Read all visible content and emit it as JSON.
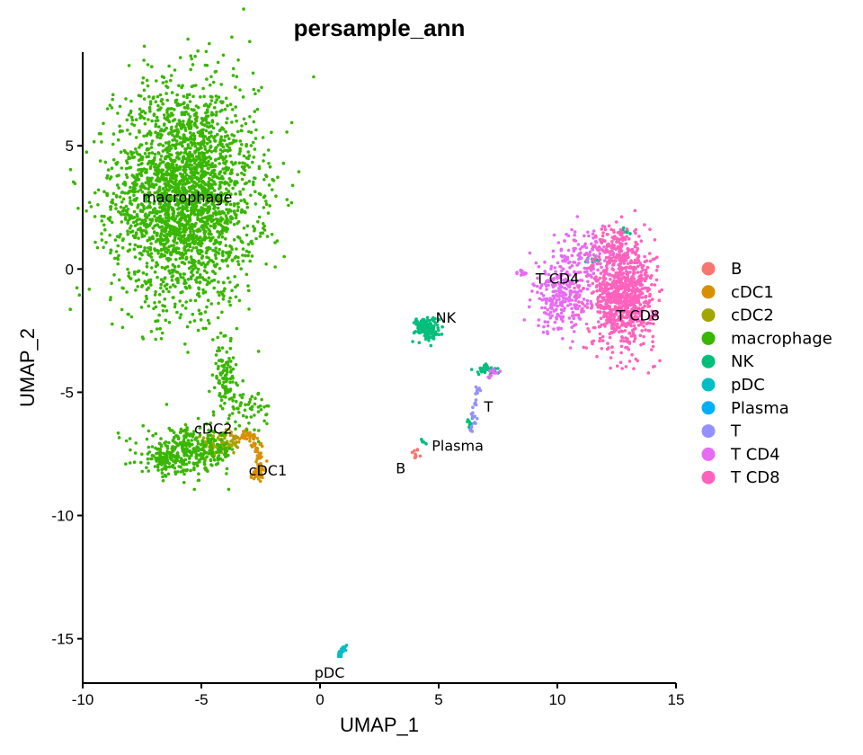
{
  "chart_data": {
    "type": "scatter",
    "title": "persample_ann",
    "xlabel": "UMAP_1",
    "ylabel": "UMAP_2",
    "xlim": [
      -10,
      15
    ],
    "ylim": [
      -16.8,
      8.8
    ],
    "xticks": [
      -10,
      -5,
      0,
      5,
      10,
      15
    ],
    "yticks": [
      -15,
      -10,
      -5,
      0,
      5
    ],
    "xtick_labels": [
      "-10",
      "-5",
      "0",
      "5",
      "10",
      "15"
    ],
    "ytick_labels": [
      "-15",
      "-10",
      "-5",
      "0",
      "5"
    ],
    "grid": false,
    "legend_position": "right",
    "categories": [
      "B",
      "cDC1",
      "cDC2",
      "macrophage",
      "NK",
      "pDC",
      "Plasma",
      "T",
      "T CD4",
      "T CD8"
    ],
    "colors": [
      "#F8766D",
      "#D89000",
      "#A3A500",
      "#39B600",
      "#00BF7D",
      "#00BFC4",
      "#00B0F6",
      "#9590FF",
      "#E76BF3",
      "#FF62BC"
    ],
    "series": [
      {
        "name": "B",
        "clusters": [
          {
            "cx": 4.0,
            "cy": -7.5,
            "sx": 0.08,
            "sy": 0.12,
            "n": 10
          }
        ]
      },
      {
        "name": "cDC1",
        "clusters": [
          {
            "arc": [
              [
                -3.8,
                -6.8
              ],
              [
                -3.0,
                -6.7
              ],
              [
                -2.6,
                -7.3
              ],
              [
                -2.5,
                -8.2
              ],
              [
                -2.7,
                -8.4
              ]
            ],
            "spread": 0.12,
            "n": 120
          }
        ]
      },
      {
        "name": "cDC2",
        "clusters": [
          {
            "cx": -4.2,
            "cy": -7.1,
            "sx": 0.4,
            "sy": 0.25,
            "n": 90
          }
        ]
      },
      {
        "name": "macrophage",
        "clusters": [
          {
            "cx": -5.7,
            "cy": 3.0,
            "sx": 1.5,
            "sy": 2.2,
            "n": 2600
          },
          {
            "cx": -5.5,
            "cy": -7.4,
            "sx": 1.0,
            "sy": 0.45,
            "n": 330
          },
          {
            "cx": -4.0,
            "cy": -4.4,
            "sx": 0.2,
            "sy": 0.6,
            "n": 90
          },
          {
            "cx": -3.1,
            "cy": -5.6,
            "sx": 0.5,
            "sy": 0.4,
            "n": 60
          },
          {
            "cx": -6.5,
            "cy": -7.8,
            "sx": 0.3,
            "sy": 0.25,
            "n": 70
          }
        ]
      },
      {
        "name": "NK",
        "clusters": [
          {
            "cx": 4.5,
            "cy": -2.4,
            "sx": 0.25,
            "sy": 0.22,
            "n": 150
          },
          {
            "cx": 7.0,
            "cy": -4.1,
            "sx": 0.25,
            "sy": 0.1,
            "n": 40
          },
          {
            "cx": 11.5,
            "cy": 0.4,
            "sx": 0.15,
            "sy": 0.15,
            "n": 12
          },
          {
            "cx": 12.9,
            "cy": 1.5,
            "sx": 0.1,
            "sy": 0.1,
            "n": 6
          },
          {
            "cx": 6.3,
            "cy": -6.2,
            "sx": 0.1,
            "sy": 0.2,
            "n": 8
          },
          {
            "cx": 4.4,
            "cy": -7.0,
            "sx": 0.06,
            "sy": 0.1,
            "n": 6
          }
        ]
      },
      {
        "name": "pDC",
        "clusters": [
          {
            "arc": [
              [
                0.8,
                -15.7
              ],
              [
                1.1,
                -15.3
              ]
            ],
            "spread": 0.04,
            "n": 30
          }
        ]
      },
      {
        "name": "Plasma",
        "clusters": []
      },
      {
        "name": "T",
        "clusters": [
          {
            "arc": [
              [
                6.4,
                -6.6
              ],
              [
                6.5,
                -5.6
              ],
              [
                6.7,
                -4.8
              ]
            ],
            "spread": 0.06,
            "n": 30
          }
        ]
      },
      {
        "name": "T CD4",
        "clusters": [
          {
            "cx": 10.2,
            "cy": -1.2,
            "sx": 0.6,
            "sy": 0.7,
            "n": 260
          },
          {
            "cx": 11.3,
            "cy": 0.5,
            "sx": 0.8,
            "sy": 0.6,
            "n": 130
          },
          {
            "cx": 8.5,
            "cy": -0.2,
            "sx": 0.12,
            "sy": 0.08,
            "n": 14
          },
          {
            "cx": 7.3,
            "cy": -4.2,
            "sx": 0.12,
            "sy": 0.1,
            "n": 12
          }
        ]
      },
      {
        "name": "T CD8",
        "clusters": [
          {
            "cx": 12.8,
            "cy": -1.1,
            "sx": 0.65,
            "sy": 1.05,
            "n": 820
          },
          {
            "cx": 12.5,
            "cy": 1.0,
            "sx": 0.35,
            "sy": 0.4,
            "n": 90
          }
        ]
      }
    ],
    "annotations": [
      {
        "text": "macrophage",
        "x": -5.6,
        "y": 2.9
      },
      {
        "text": "NK",
        "x": 5.3,
        "y": -2.0
      },
      {
        "text": "T CD4",
        "x": 10.0,
        "y": -0.4
      },
      {
        "text": "T CD8",
        "x": 13.4,
        "y": -1.9
      },
      {
        "text": "T",
        "x": 7.1,
        "y": -5.6
      },
      {
        "text": "Plasma",
        "x": 5.8,
        "y": -7.2
      },
      {
        "text": "B",
        "x": 3.4,
        "y": -8.1
      },
      {
        "text": "cDC2",
        "x": -4.5,
        "y": -6.5
      },
      {
        "text": "cDC1",
        "x": -2.2,
        "y": -8.2
      },
      {
        "text": "pDC",
        "x": 0.4,
        "y": -16.4
      }
    ]
  }
}
